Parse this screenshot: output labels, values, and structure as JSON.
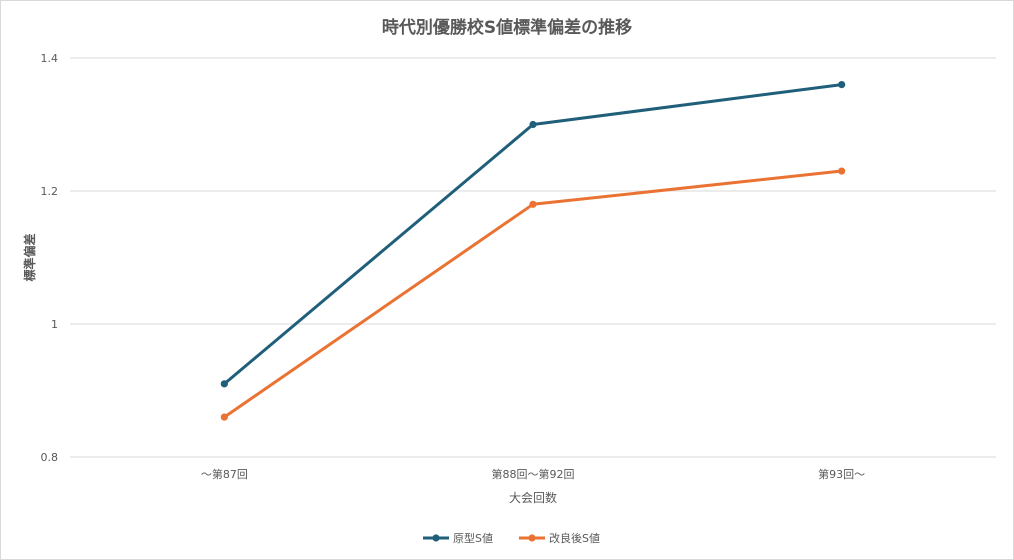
{
  "chart_data": {
    "type": "line",
    "title": "時代別優勝校S値標準偏差の推移",
    "xlabel": "大会回数",
    "ylabel": "標準偏差",
    "categories": [
      "～第87回",
      "第88回～第92回",
      "第93回～"
    ],
    "ylim": [
      0.8,
      1.4
    ],
    "yticks": [
      0.8,
      1,
      1.2,
      1.4
    ],
    "ytick_labels": [
      "0.8",
      "1",
      "1.2",
      "1.4"
    ],
    "grid": true,
    "legend_position": "bottom",
    "series": [
      {
        "name": "原型S値",
        "color": "#1f5f7a",
        "values": [
          0.91,
          1.3,
          1.36
        ]
      },
      {
        "name": "改良後S値",
        "color": "#ea7233",
        "values": [
          0.86,
          1.18,
          1.23
        ]
      }
    ]
  }
}
